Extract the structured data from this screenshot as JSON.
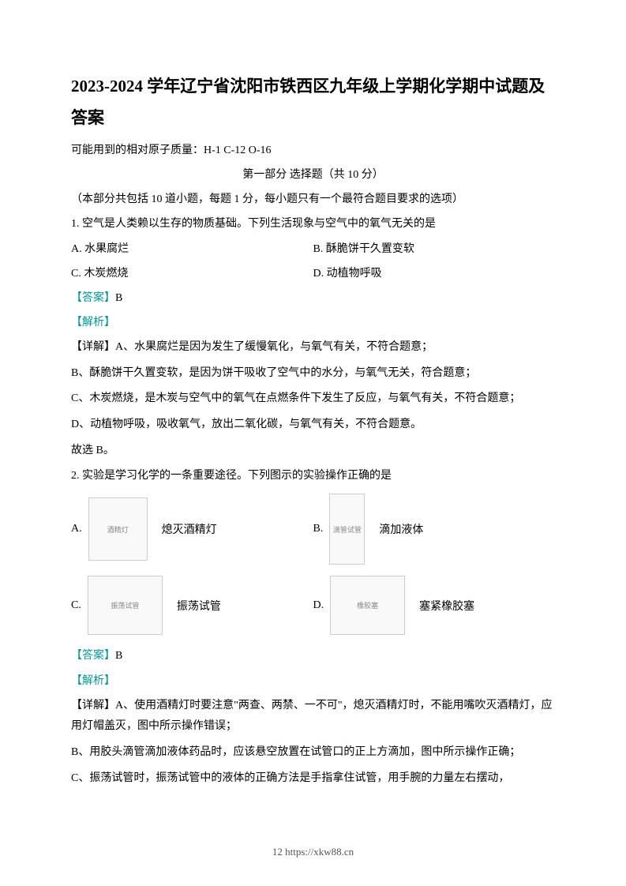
{
  "title": "2023-2024 学年辽宁省沈阳市铁西区九年级上学期化学期中试题及答案",
  "atomic_mass": "可能用到的相对原子质量：H-1 C-12 O-16",
  "section_header": "第一部分 选择题（共 10 分）",
  "section_note": "（本部分共包括 10 道小题，每题 1 分，每小题只有一个最符合题目要求的选项）",
  "q1": {
    "stem": "1. 空气是人类赖以生存的物质基础。下列生活现象与空气中的氧气无关的是",
    "options": {
      "A": "A. 水果腐烂",
      "B": "B. 酥脆饼干久置变软",
      "C": "C. 木炭燃烧",
      "D": "D. 动植物呼吸"
    },
    "answer_label": "【答案】",
    "answer": "B",
    "analysis_label": "【解析】",
    "detail_prefix": "【详解】",
    "detail_A": "A、水果腐烂是因为发生了缓慢氧化，与氧气有关，不符合题意；",
    "detail_B": "B、酥脆饼干久置变软，是因为饼干吸收了空气中的水分，与氧气无关，符合题意；",
    "detail_C": "C、木炭燃烧，是木炭与空气中的氧气在点燃条件下发生了反应，与氧气有关，不符合题意；",
    "detail_D": "D、动植物呼吸，吸收氧气，放出二氧化碳，与氧气有关，不符合题意。",
    "conclusion": "故选 B。"
  },
  "q2": {
    "stem": "2. 实验是学习化学的一条重要途径。下列图示的实验操作正确的是",
    "options": {
      "A": {
        "letter": "A.",
        "caption": "熄灭酒精灯",
        "img_alt": "酒精灯"
      },
      "B": {
        "letter": "B.",
        "caption": "滴加液体",
        "img_alt": "滴管试管"
      },
      "C": {
        "letter": "C.",
        "caption": "振荡试管",
        "img_alt": "振荡试管"
      },
      "D": {
        "letter": "D.",
        "caption": "塞紧橡胶塞",
        "img_alt": "橡胶塞"
      }
    },
    "answer_label": "【答案】",
    "answer": "B",
    "analysis_label": "【解析】",
    "detail_prefix": "【详解】",
    "detail_A": "A、使用酒精灯时要注意\"两查、两禁、一不可\"，熄灭酒精灯时，不能用嘴吹灭酒精灯，应用灯帽盖灭，图中所示操作错误；",
    "detail_B": "B、用胶头滴管滴加液体药品时，应该悬空放置在试管口的正上方滴加，图中所示操作正确；",
    "detail_C": "C、振荡试管时，振荡试管中的液体的正确方法是手指拿住试管，用手腕的力量左右摆动，"
  },
  "footer": "12 https://xkw88.cn",
  "colors": {
    "teal": "#009999",
    "text": "#000000",
    "background": "#ffffff"
  },
  "fonts": {
    "title_size": 21,
    "body_size": 14,
    "footer_size": 13
  }
}
